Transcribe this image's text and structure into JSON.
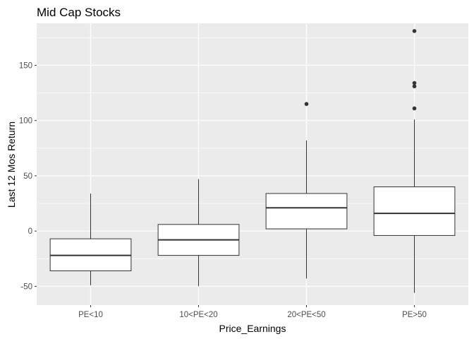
{
  "chart_data": {
    "type": "boxplot",
    "title": "Mid Cap Stocks",
    "xlabel": "Price_Earnings",
    "ylabel": "Last 12 Mos Return",
    "categories": [
      "PE<10",
      "10<PE<20",
      "20<PE<50",
      "PE>50"
    ],
    "ylim": [
      -67,
      188
    ],
    "yticks": [
      -50,
      0,
      50,
      100,
      150
    ],
    "grid": true,
    "boxes": [
      {
        "category": "PE<10",
        "whisker_low": -49,
        "q1": -36,
        "median": -22,
        "q3": -7,
        "whisker_high": 34,
        "outliers": []
      },
      {
        "category": "10<PE<20",
        "whisker_low": -50,
        "q1": -22,
        "median": -8,
        "q3": 6,
        "whisker_high": 47,
        "outliers": []
      },
      {
        "category": "20<PE<50",
        "whisker_low": -43,
        "q1": 2,
        "median": 21,
        "q3": 34,
        "whisker_high": 82,
        "outliers": [
          115
        ]
      },
      {
        "category": "PE>50",
        "whisker_low": -56,
        "q1": -4,
        "median": 16,
        "q3": 40,
        "whisker_high": 101,
        "outliers": [
          111,
          131,
          134,
          181
        ]
      }
    ],
    "colors": {
      "panel_background": "#ebebeb",
      "grid": "#ffffff",
      "box_fill": "#ffffff",
      "box_line": "#333333",
      "outlier": "#333333"
    }
  }
}
